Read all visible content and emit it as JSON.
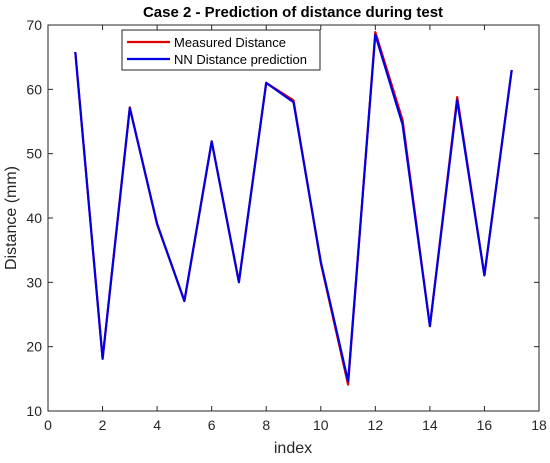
{
  "chart_data": {
    "type": "line",
    "title": "Case 2 - Prediction of distance during test",
    "xlabel": "index",
    "ylabel": "Distance (mm)",
    "xlim": [
      0,
      18
    ],
    "ylim": [
      10,
      70
    ],
    "xticks": [
      0,
      2,
      4,
      6,
      8,
      10,
      12,
      14,
      16,
      18
    ],
    "yticks": [
      10,
      20,
      30,
      40,
      50,
      60,
      70
    ],
    "grid": false,
    "legend_position": "top-center",
    "x": [
      1,
      2,
      3,
      4,
      5,
      6,
      7,
      8,
      9,
      10,
      11,
      12,
      13,
      14,
      15,
      16,
      17
    ],
    "series": [
      {
        "name": "Measured Distance",
        "color": "#e00000",
        "values": [
          65.8,
          18.2,
          57.2,
          39.0,
          27.1,
          51.9,
          30.1,
          61.0,
          58.3,
          33.0,
          14.1,
          68.9,
          55.2,
          23.2,
          58.8,
          31.1,
          63.0
        ]
      },
      {
        "name": "NN Distance prediction",
        "color": "#0000e6",
        "values": [
          65.8,
          18.1,
          57.1,
          39.1,
          27.1,
          51.9,
          30.0,
          61.0,
          58.0,
          33.2,
          14.6,
          68.5,
          54.5,
          23.2,
          58.3,
          31.1,
          63.0
        ]
      }
    ]
  }
}
